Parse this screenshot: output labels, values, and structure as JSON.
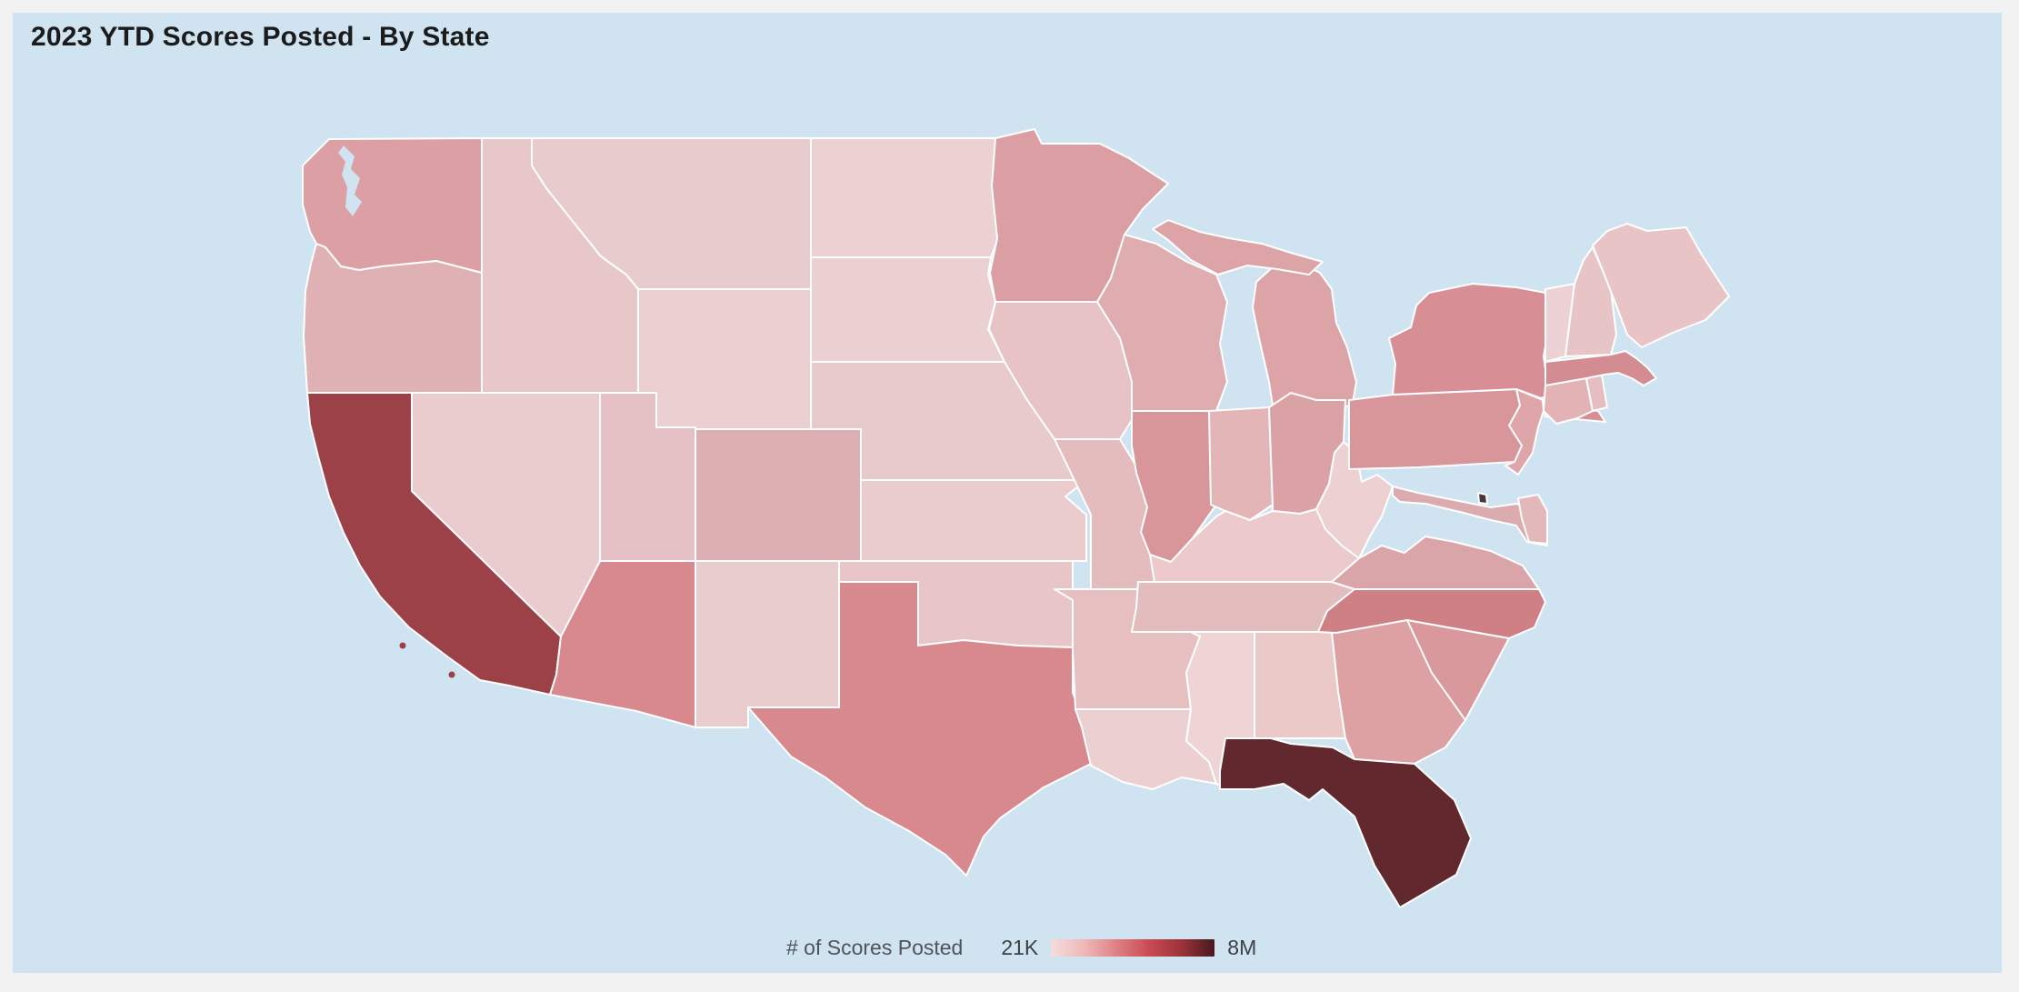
{
  "window": {
    "background": "#f2f2f3",
    "panel_background": "#cfe3f1"
  },
  "header": {
    "title": "2023 YTD Scores Posted - By State",
    "title_color": "#1b1b1b"
  },
  "legend": {
    "label": "# of Scores Posted",
    "min_label": "21K",
    "max_label": "8M",
    "gradient_stops": [
      "#f6dcdc",
      "#efb9ba",
      "#de8186",
      "#c94b51",
      "#9c3338",
      "#451a1e"
    ],
    "label_color": "#50545a",
    "value_color": "#3d4145"
  },
  "map": {
    "ocean_color": "#cfe3f1",
    "state_border_color": "#ffffff"
  },
  "chart_data": {
    "type": "choropleth",
    "title": "2023 YTD Scores Posted - By State",
    "metric": "# of Scores Posted",
    "scale": {
      "min_label": "21K",
      "max_label": "8M"
    },
    "legend_position": "bottom-center",
    "states": [
      {
        "id": "WA",
        "name": "Washington",
        "fill": "#db9fa4"
      },
      {
        "id": "OR",
        "name": "Oregon",
        "fill": "#e0b1b4"
      },
      {
        "id": "CA",
        "name": "California",
        "fill": "#9c4148"
      },
      {
        "id": "NV",
        "name": "Nevada",
        "fill": "#eacccf"
      },
      {
        "id": "ID",
        "name": "Idaho",
        "fill": "#e8c7c9"
      },
      {
        "id": "MT",
        "name": "Montana",
        "fill": "#e8cbcd"
      },
      {
        "id": "WY",
        "name": "Wyoming",
        "fill": "#eccfd1"
      },
      {
        "id": "UT",
        "name": "Utah",
        "fill": "#e5c0c4"
      },
      {
        "id": "CO",
        "name": "Colorado",
        "fill": "#ddaeb2"
      },
      {
        "id": "AZ",
        "name": "Arizona",
        "fill": "#d8898e"
      },
      {
        "id": "NM",
        "name": "New Mexico",
        "fill": "#e9cdcd"
      },
      {
        "id": "ND",
        "name": "North Dakota",
        "fill": "#ebd1d2"
      },
      {
        "id": "SD",
        "name": "South Dakota",
        "fill": "#ead0d1"
      },
      {
        "id": "NE",
        "name": "Nebraska",
        "fill": "#e9caca"
      },
      {
        "id": "KS",
        "name": "Kansas",
        "fill": "#eacccc"
      },
      {
        "id": "OK",
        "name": "Oklahoma",
        "fill": "#e8c5c6"
      },
      {
        "id": "TX",
        "name": "Texas",
        "fill": "#d8898e"
      },
      {
        "id": "MN",
        "name": "Minnesota",
        "fill": "#db9fa3"
      },
      {
        "id": "IA",
        "name": "Iowa",
        "fill": "#e7c3c5"
      },
      {
        "id": "MO",
        "name": "Missouri",
        "fill": "#e5bcbe"
      },
      {
        "id": "AR",
        "name": "Arkansas",
        "fill": "#e6bfc0"
      },
      {
        "id": "LA",
        "name": "Louisiana",
        "fill": "#eccfd0"
      },
      {
        "id": "WI",
        "name": "Wisconsin",
        "fill": "#dfacaf"
      },
      {
        "id": "IL",
        "name": "Illinois",
        "fill": "#d8969b"
      },
      {
        "id": "MI",
        "name": "Michigan",
        "fill": "#dda4a7"
      },
      {
        "id": "IN",
        "name": "Indiana",
        "fill": "#e3b5b7"
      },
      {
        "id": "OH",
        "name": "Ohio",
        "fill": "#dba2a5"
      },
      {
        "id": "KY",
        "name": "Kentucky",
        "fill": "#ecc9cb"
      },
      {
        "id": "TN",
        "name": "Tennessee",
        "fill": "#e3bdbe"
      },
      {
        "id": "MS",
        "name": "Mississippi",
        "fill": "#eed4d4"
      },
      {
        "id": "AL",
        "name": "Alabama",
        "fill": "#ecc9c9"
      },
      {
        "id": "GA",
        "name": "Georgia",
        "fill": "#dda0a3"
      },
      {
        "id": "FL",
        "name": "Florida",
        "fill": "#61282e"
      },
      {
        "id": "SC",
        "name": "South Carolina",
        "fill": "#d9989c"
      },
      {
        "id": "NC",
        "name": "North Carolina",
        "fill": "#cf8085"
      },
      {
        "id": "VA",
        "name": "Virginia",
        "fill": "#d9a5a9"
      },
      {
        "id": "WV",
        "name": "West Virginia",
        "fill": "#ecd0d2"
      },
      {
        "id": "MD",
        "name": "Maryland",
        "fill": "#dcabaf"
      },
      {
        "id": "DE",
        "name": "Delaware",
        "fill": "#e3b8ba"
      },
      {
        "id": "DC",
        "name": "District of Columbia",
        "fill": "#4a3539"
      },
      {
        "id": "NJ",
        "name": "New Jersey",
        "fill": "#dfa6a9"
      },
      {
        "id": "PA",
        "name": "Pennsylvania",
        "fill": "#d8969a"
      },
      {
        "id": "NY",
        "name": "New York",
        "fill": "#d78f95"
      },
      {
        "id": "CT",
        "name": "Connecticut",
        "fill": "#e2b2b5"
      },
      {
        "id": "RI",
        "name": "Rhode Island",
        "fill": "#e4bec0"
      },
      {
        "id": "MA",
        "name": "Massachusetts",
        "fill": "#d38d92"
      },
      {
        "id": "VT",
        "name": "Vermont",
        "fill": "#ecd2d4"
      },
      {
        "id": "NH",
        "name": "New Hampshire",
        "fill": "#e7c5c7"
      },
      {
        "id": "ME",
        "name": "Maine",
        "fill": "#e9c4c6"
      }
    ]
  }
}
